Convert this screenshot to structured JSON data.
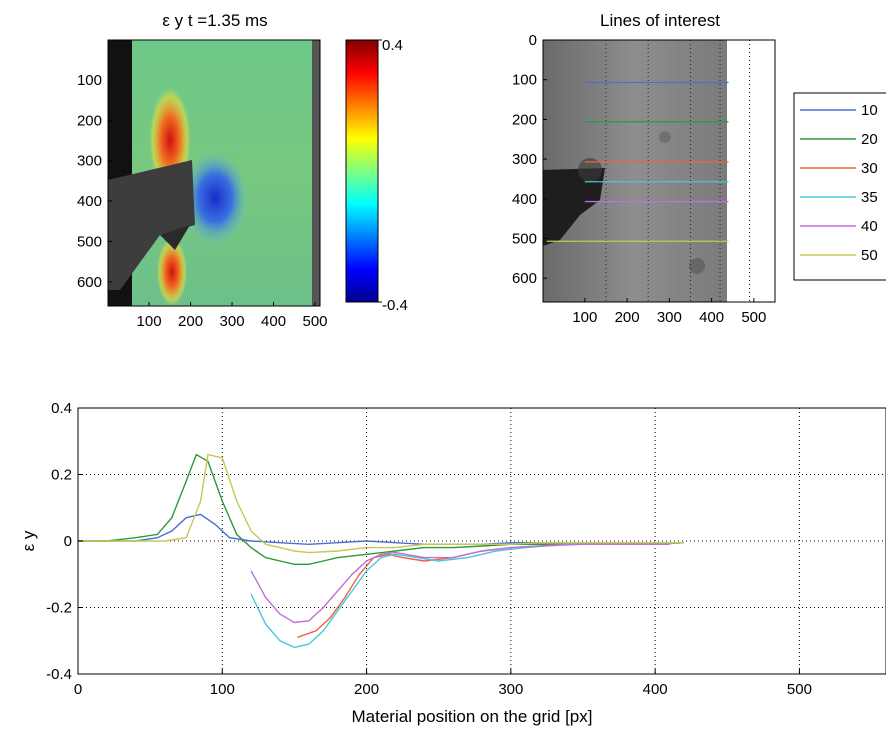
{
  "chart_data": [
    {
      "type": "heatmap",
      "title": "ε y   t =1.35 ms",
      "xticks": [
        100,
        200,
        300,
        400,
        500
      ],
      "yticks": [
        100,
        200,
        300,
        400,
        500,
        600
      ],
      "xlim": [
        1,
        512
      ],
      "ylim": [
        1,
        660
      ],
      "colorbar": {
        "min": -0.4,
        "max": 0.4,
        "min_label": "-0.4",
        "max_label": "0.4"
      }
    },
    {
      "type": "image",
      "title": "Lines of interest",
      "xticks": [
        100,
        200,
        300,
        400,
        500
      ],
      "yticks": [
        0,
        100,
        200,
        300,
        400,
        500,
        600
      ],
      "xlim": [
        1,
        550
      ],
      "ylim": [
        0,
        660
      ],
      "lines": [
        {
          "name": "10",
          "y": 107,
          "color": "#4a6fd6"
        },
        {
          "name": "20",
          "y": 206,
          "color": "#2a9a3a"
        },
        {
          "name": "30",
          "y": 307,
          "color": "#f06040"
        },
        {
          "name": "35",
          "y": 357,
          "color": "#48c8d8"
        },
        {
          "name": "40",
          "y": 407,
          "color": "#c070d8"
        },
        {
          "name": "50",
          "y": 507,
          "color": "#c8c850"
        }
      ]
    },
    {
      "type": "line",
      "title": "",
      "xlabel": "Material position on the grid [px]",
      "ylabel": "ε y",
      "xlim": [
        0,
        560
      ],
      "ylim": [
        -0.4,
        0.4
      ],
      "xticks": [
        0,
        100,
        200,
        300,
        400,
        500
      ],
      "yticks": [
        -0.4,
        -0.2,
        0,
        0.2,
        0.4
      ],
      "ytick_labels": [
        "-0.4",
        "-0.2",
        "0",
        "0.2",
        "0.4"
      ],
      "grid": true,
      "series": [
        {
          "name": "10",
          "color": "#4a6fd6",
          "x": [
            0,
            20,
            40,
            55,
            65,
            75,
            85,
            95,
            105,
            120,
            140,
            160,
            180,
            200,
            220,
            240,
            260,
            280,
            300,
            320,
            340,
            360,
            380,
            400,
            420
          ],
          "y": [
            0,
            0,
            0,
            0.01,
            0.03,
            0.07,
            0.08,
            0.05,
            0.01,
            0,
            -0.005,
            -0.01,
            -0.005,
            0,
            -0.005,
            -0.01,
            -0.01,
            -0.01,
            -0.005,
            -0.005,
            -0.005,
            -0.005,
            -0.005,
            -0.005,
            -0.005
          ]
        },
        {
          "name": "20",
          "color": "#2a9a3a",
          "x": [
            0,
            20,
            40,
            55,
            65,
            75,
            82,
            90,
            100,
            110,
            120,
            130,
            140,
            150,
            160,
            170,
            180,
            200,
            220,
            240,
            260,
            280,
            300,
            320,
            340,
            360,
            380,
            400,
            420
          ],
          "y": [
            0,
            0,
            0.01,
            0.02,
            0.07,
            0.18,
            0.26,
            0.24,
            0.12,
            0.02,
            -0.02,
            -0.05,
            -0.06,
            -0.07,
            -0.07,
            -0.06,
            -0.05,
            -0.04,
            -0.03,
            -0.02,
            -0.02,
            -0.015,
            -0.01,
            -0.01,
            -0.01,
            -0.01,
            -0.01,
            -0.01,
            -0.005
          ]
        },
        {
          "name": "30",
          "color": "#f06040",
          "x": [
            152,
            165,
            175,
            185,
            195,
            205,
            215,
            225,
            240,
            260,
            280,
            300,
            320,
            340,
            360,
            380,
            400,
            420
          ],
          "y": [
            -0.29,
            -0.27,
            -0.23,
            -0.17,
            -0.1,
            -0.05,
            -0.04,
            -0.05,
            -0.06,
            -0.05,
            -0.03,
            -0.02,
            -0.015,
            -0.01,
            -0.01,
            -0.01,
            -0.01,
            -0.005
          ]
        },
        {
          "name": "35",
          "color": "#48c8d8",
          "x": [
            120,
            130,
            140,
            150,
            160,
            170,
            180,
            190,
            200,
            210,
            220,
            235,
            250,
            270,
            290,
            310,
            340,
            370,
            400,
            420
          ],
          "y": [
            -0.16,
            -0.25,
            -0.3,
            -0.32,
            -0.31,
            -0.27,
            -0.21,
            -0.15,
            -0.09,
            -0.05,
            -0.04,
            -0.05,
            -0.06,
            -0.05,
            -0.03,
            -0.02,
            -0.01,
            -0.01,
            -0.01,
            -0.005
          ]
        },
        {
          "name": "40",
          "color": "#c070d8",
          "x": [
            120,
            130,
            140,
            150,
            160,
            170,
            180,
            190,
            200,
            210,
            220,
            240,
            260,
            280,
            300,
            320,
            350,
            380,
            410
          ],
          "y": [
            -0.09,
            -0.17,
            -0.22,
            -0.245,
            -0.24,
            -0.2,
            -0.15,
            -0.1,
            -0.06,
            -0.04,
            -0.035,
            -0.05,
            -0.05,
            -0.03,
            -0.02,
            -0.015,
            -0.01,
            -0.01,
            -0.01
          ]
        },
        {
          "name": "50",
          "color": "#c8c850",
          "x": [
            0,
            20,
            40,
            60,
            75,
            85,
            90,
            100,
            110,
            120,
            130,
            140,
            150,
            160,
            180,
            200,
            220,
            240,
            260,
            280,
            300,
            320,
            340,
            360,
            380,
            400,
            420
          ],
          "y": [
            0,
            0,
            0,
            0,
            0.01,
            0.12,
            0.26,
            0.25,
            0.12,
            0.03,
            -0.01,
            -0.02,
            -0.03,
            -0.035,
            -0.03,
            -0.02,
            -0.02,
            -0.01,
            -0.01,
            -0.01,
            -0.01,
            -0.005,
            -0.005,
            -0.005,
            -0.005,
            -0.005,
            -0.005
          ]
        }
      ]
    }
  ]
}
